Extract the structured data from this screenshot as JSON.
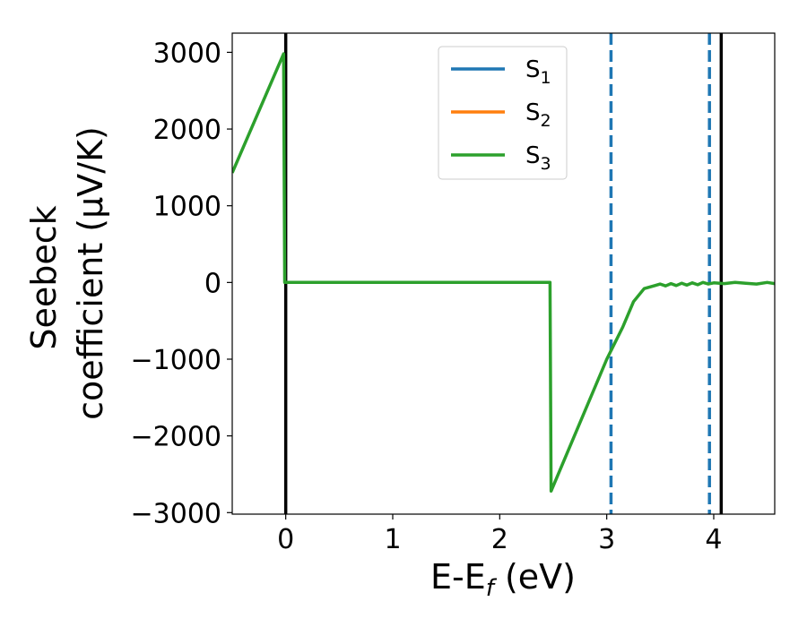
{
  "chart_data": {
    "type": "line",
    "xlabel": "E-E",
    "xlabel_sub": "f",
    "xlabel_unit": " (eV)",
    "ylabel_line1": "Seebeck",
    "ylabel_line2": "coefficient  (μV/K)",
    "xlim": [
      -0.5,
      4.57
    ],
    "ylim": [
      -3020,
      3250
    ],
    "xticks": [
      0,
      1,
      2,
      3,
      4
    ],
    "yticks": [
      -3000,
      -2000,
      -1000,
      0,
      1000,
      2000,
      3000
    ],
    "xtick_labels": [
      "0",
      "1",
      "2",
      "3",
      "4"
    ],
    "ytick_labels": [
      "−3000",
      "−2000",
      "−1000",
      "0",
      "1000",
      "2000",
      "3000"
    ],
    "grid": false,
    "legend_position": "top-center",
    "colors": {
      "S1": "#1f77b4",
      "S2": "#ff7f0e",
      "S3": "#2ca02c",
      "vlines": "#000000"
    },
    "legend": [
      {
        "base": "S",
        "sub": "1",
        "color": "#1f77b4"
      },
      {
        "base": "S",
        "sub": "2",
        "color": "#ff7f0e"
      },
      {
        "base": "S",
        "sub": "3",
        "color": "#2ca02c"
      }
    ],
    "series": [
      {
        "name": "S3",
        "color": "#2ca02c",
        "x": [
          -0.5,
          -0.02,
          -0.01,
          2.47,
          2.48,
          3.0,
          3.15,
          3.25,
          3.35,
          3.45,
          3.5,
          3.55,
          3.6,
          3.65,
          3.7,
          3.75,
          3.8,
          3.85,
          3.9,
          3.95,
          4.0,
          4.1,
          4.2,
          4.3,
          4.4,
          4.5,
          4.57
        ],
        "y": [
          1430,
          2980,
          0,
          0,
          -2720,
          -1000,
          -580,
          -250,
          -80,
          -40,
          -20,
          -45,
          -15,
          -40,
          -10,
          -35,
          -5,
          -30,
          0,
          -20,
          -5,
          -15,
          0,
          -10,
          -20,
          0,
          -15
        ]
      }
    ],
    "vlines": [
      {
        "x": 0.0,
        "style": "solid",
        "color": "#000000"
      },
      {
        "x": 4.07,
        "style": "solid",
        "color": "#000000"
      },
      {
        "x": 3.04,
        "style": "dashed",
        "color": "#1f77b4"
      },
      {
        "x": 3.96,
        "style": "dashed",
        "color": "#1f77b4"
      }
    ]
  }
}
